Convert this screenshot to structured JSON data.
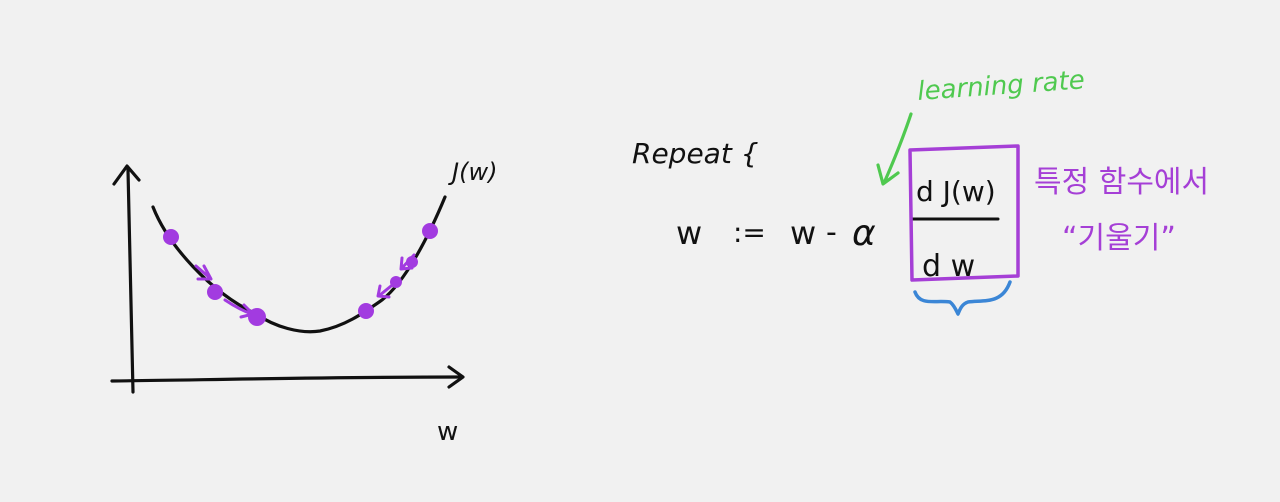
{
  "graph": {
    "curve_label": "J(w)",
    "x_axis_label": "w"
  },
  "formula": {
    "repeat_label": "Repeat {",
    "lhs": "w",
    "assign": ":=",
    "rhs_prefix": "w",
    "minus": "-",
    "alpha": "α",
    "numerator": "d J(w)",
    "denominator": "d w"
  },
  "annotations": {
    "learning_rate": "learning rate",
    "gradient_note_line1": "특정 함수에서",
    "gradient_note_line2": "“기울기”"
  },
  "colors": {
    "ink": "#111111",
    "descent_points": "#a23be0",
    "gradient_box": "#a53fd6",
    "learning_rate_note": "#4fc94f",
    "brace": "#3b86d6",
    "background": "#f1f1f1"
  }
}
